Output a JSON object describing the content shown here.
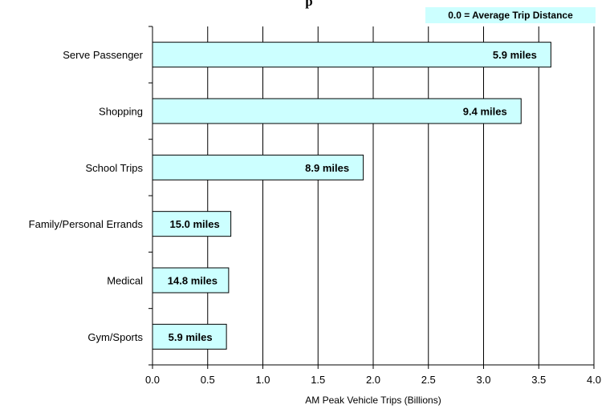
{
  "chart_data": {
    "type": "bar",
    "orientation": "horizontal",
    "title": "",
    "visible_title_fragment": "p",
    "categories": [
      "Serve Passenger",
      "Shopping",
      "School Trips",
      "Family/Personal Errands",
      "Medical",
      "Gym/Sports"
    ],
    "values": [
      3.61,
      3.34,
      1.91,
      0.71,
      0.69,
      0.67
    ],
    "data_labels": [
      "5.9 miles",
      "9.4 miles",
      "8.9 miles",
      "15.0 miles",
      "14.8 miles",
      "5.9 miles"
    ],
    "xlabel": "AM Peak Vehicle Trips (Billions)",
    "ylabel": "",
    "xlim": [
      0,
      4.0
    ],
    "xticks": [
      "0.0",
      "0.5",
      "1.0",
      "1.5",
      "2.0",
      "2.5",
      "3.0",
      "3.5",
      "4.0"
    ],
    "grid": "vertical",
    "legend_note": "0.0 = Average Trip Distance",
    "bar_color": "#ccffff",
    "bar_stroke": "#000000",
    "label_box_color": "#ccffff"
  }
}
